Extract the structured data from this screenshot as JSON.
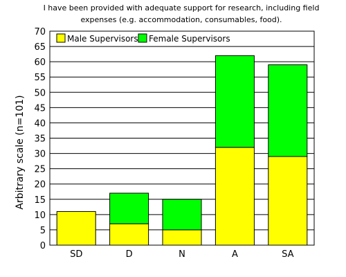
{
  "chart_data": {
    "type": "bar",
    "stacked": true,
    "title": [
      "I have been provided with adequate support for research, including field",
      "expenses (e.g. accommodation, consumables, food)."
    ],
    "xlabel": "",
    "ylabel": "Arbitrary scale (n=101)",
    "ylim": [
      0,
      70
    ],
    "yticks": [
      0,
      5,
      10,
      15,
      20,
      25,
      30,
      35,
      40,
      45,
      50,
      55,
      60,
      65,
      70
    ],
    "grid": true,
    "legend_position": "top-left",
    "categories": [
      "SD",
      "D",
      "N",
      "A",
      "SA"
    ],
    "series": [
      {
        "name": "Male Supervisors",
        "values": [
          11,
          7,
          5,
          32,
          29
        ],
        "color": "#ffff00"
      },
      {
        "name": "Female Supervisors",
        "values": [
          0,
          10,
          10,
          30,
          30
        ],
        "color": "#00ff00"
      }
    ]
  }
}
